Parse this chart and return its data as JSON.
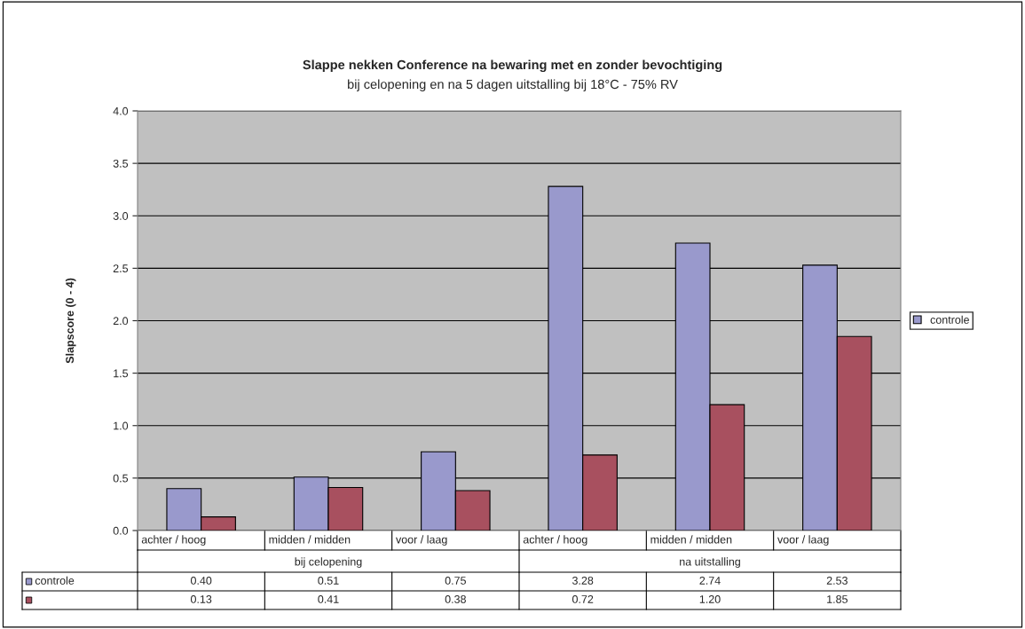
{
  "chart_data": {
    "type": "bar",
    "title": "Slappe nekken Conference na bewaring met en zonder bevochtiging",
    "subtitle": "bij celopening en na 5 dagen uitstalling bij 18°C - 75% RV",
    "ylabel": "Slapscore (0 - 4)",
    "categories": [
      "achter / hoog",
      "midden / midden",
      "voor / laag",
      "achter / hoog",
      "midden / midden",
      "voor / laag"
    ],
    "annotations": [
      "bij celopening",
      "na uitstalling"
    ],
    "series": [
      {
        "name": "controle",
        "color": "#9999cc",
        "values": [
          0.4,
          0.51,
          0.75,
          3.28,
          2.74,
          2.53
        ],
        "value_labels": [
          "0.40",
          "0.51",
          "0.75",
          "3.28",
          "2.74",
          "2.53"
        ]
      },
      {
        "color": "#a8505f",
        "values": [
          0.13,
          0.41,
          0.38,
          0.72,
          1.2,
          1.85
        ],
        "value_labels": [
          "0.13",
          "0.41",
          "0.38",
          "0.72",
          "1.20",
          "1.85"
        ]
      }
    ],
    "ylim": [
      0,
      4
    ],
    "yticks": [
      {
        "value": 0,
        "label": "0.0"
      },
      {
        "value": 0.5,
        "label": "0.5"
      },
      {
        "value": 1,
        "label": "1.0"
      },
      {
        "value": 1.5,
        "label": "1.5"
      },
      {
        "value": 2,
        "label": "2.0"
      },
      {
        "value": 2.5,
        "label": "2.5"
      },
      {
        "value": 3,
        "label": "3.0"
      },
      {
        "value": 3.5,
        "label": "3.5"
      },
      {
        "value": 4,
        "label": "4.0"
      }
    ],
    "grid": "y",
    "legend": "right"
  }
}
